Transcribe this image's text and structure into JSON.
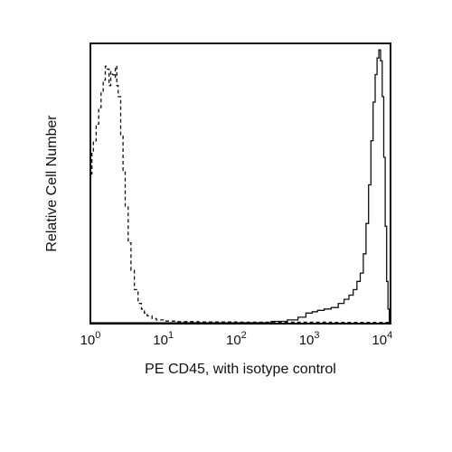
{
  "chart_data": {
    "type": "line",
    "title": "",
    "xlabel": "PE CD45, with isotype control",
    "ylabel": "Relative Cell Number",
    "x_scale": "log",
    "xlim": [
      1,
      13000
    ],
    "ylim": [
      0,
      1
    ],
    "grid": false,
    "x_ticks": [
      {
        "base": "10",
        "exp": "0"
      },
      {
        "base": "10",
        "exp": "1"
      },
      {
        "base": "10",
        "exp": "2"
      },
      {
        "base": "10",
        "exp": "3"
      },
      {
        "base": "10",
        "exp": "4"
      }
    ],
    "series": [
      {
        "line_style": "dashed",
        "color": "#111111",
        "x": [
          1.0,
          1.05,
          1.1,
          1.2,
          1.3,
          1.4,
          1.5,
          1.6,
          1.7,
          1.8,
          1.9,
          2.0,
          2.1,
          2.2,
          2.3,
          2.4,
          2.6,
          2.8,
          3.0,
          3.3,
          3.6,
          4.0,
          4.5,
          5.0,
          5.5,
          6.0,
          7.0,
          8.0,
          10.0,
          15.0,
          30.0,
          100.0,
          500.0,
          2000.0,
          5000.0,
          10000.0,
          12500.0
        ],
        "y": [
          0.54,
          0.62,
          0.66,
          0.72,
          0.78,
          0.84,
          0.88,
          0.93,
          0.92,
          0.86,
          0.91,
          0.9,
          0.89,
          0.93,
          0.86,
          0.82,
          0.68,
          0.55,
          0.42,
          0.29,
          0.19,
          0.12,
          0.07,
          0.05,
          0.035,
          0.025,
          0.015,
          0.01,
          0.006,
          0.004,
          0.003,
          0.002,
          0.002,
          0.001,
          0.001,
          0.001,
          0.0
        ]
      },
      {
        "line_style": "solid",
        "color": "#111111",
        "x": [
          1.0,
          10.0,
          100.0,
          300.0,
          500.0,
          700.0,
          900.0,
          1100.0,
          1300.0,
          1600.0,
          2000.0,
          2500.0,
          3000.0,
          3500.0,
          4000.0,
          4500.0,
          5000.0,
          5500.0,
          6000.0,
          6500.0,
          7000.0,
          7500.0,
          8000.0,
          8500.0,
          9000.0,
          9500.0,
          10000.0,
          10500.0,
          11000.0,
          11500.0,
          12000.0,
          12500.0
        ],
        "y": [
          0.0,
          0.0,
          0.0,
          0.005,
          0.01,
          0.02,
          0.035,
          0.04,
          0.045,
          0.05,
          0.055,
          0.07,
          0.085,
          0.1,
          0.12,
          0.15,
          0.18,
          0.25,
          0.36,
          0.5,
          0.66,
          0.8,
          0.9,
          0.96,
          0.99,
          0.95,
          0.82,
          0.6,
          0.35,
          0.15,
          0.05,
          0.0
        ]
      }
    ]
  }
}
